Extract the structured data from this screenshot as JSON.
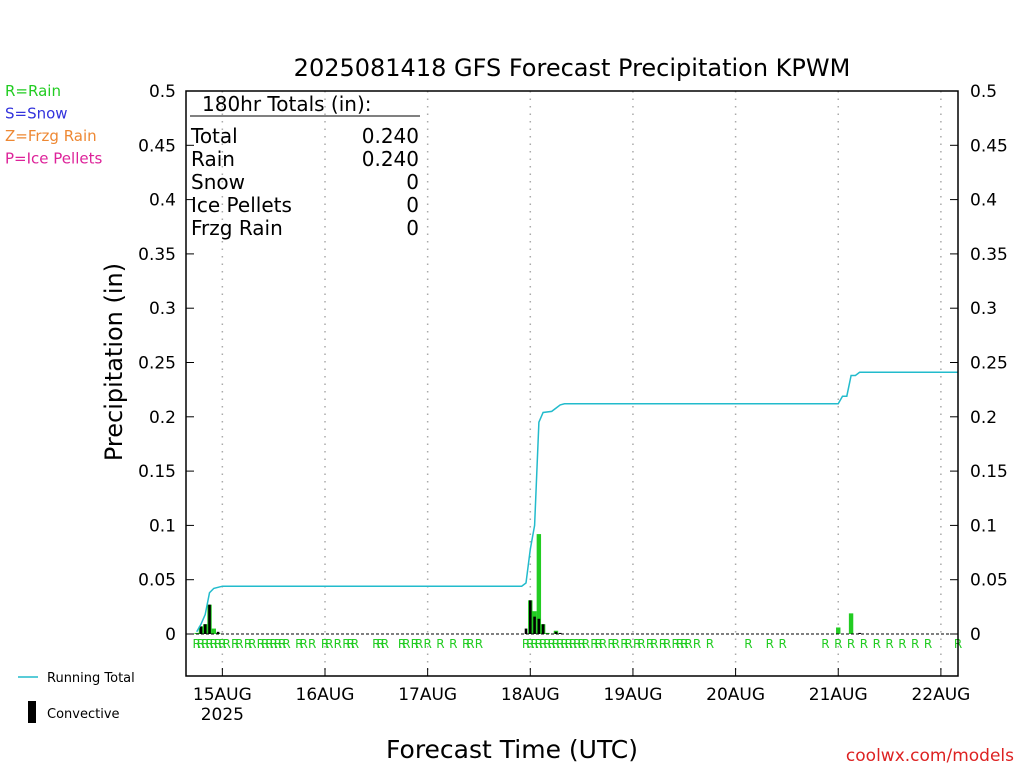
{
  "chart_data": {
    "type": "bar",
    "title": "2025081418 GFS Forecast Precipitation KPWM",
    "xlabel": "Forecast Time (UTC)",
    "ylabel": "Precipitation (in)",
    "ylim": [
      0,
      0.5
    ],
    "yticks": [
      "0",
      "0.05",
      "0.1",
      "0.15",
      "0.2",
      "0.25",
      "0.3",
      "0.35",
      "0.4",
      "0.45",
      "0.5"
    ],
    "xlim_hours": [
      -2.5,
      178
    ],
    "xticks": [
      {
        "label": "15AUG",
        "sub": "2025",
        "hour": 6
      },
      {
        "label": "16AUG",
        "sub": "",
        "hour": 30
      },
      {
        "label": "17AUG",
        "sub": "",
        "hour": 54
      },
      {
        "label": "18AUG",
        "sub": "",
        "hour": 78
      },
      {
        "label": "19AUG",
        "sub": "",
        "hour": 102
      },
      {
        "label": "20AUG",
        "sub": "",
        "hour": 126
      },
      {
        "label": "21AUG",
        "sub": "",
        "hour": 150
      },
      {
        "label": "22AUG",
        "sub": "",
        "hour": 174
      }
    ],
    "grid": "vertical-dotted",
    "legend": {
      "types": [
        {
          "text": "R=Rain",
          "color": "#22cc22"
        },
        {
          "text": "S=Snow",
          "color": "#3333dd"
        },
        {
          "text": "Z=Frzg Rain",
          "color": "#ee8833"
        },
        {
          "text": "P=Ice Pellets",
          "color": "#dd2299"
        }
      ],
      "lines": [
        {
          "text": "Running Total",
          "color": "#22bbcc"
        },
        {
          "text": "Convective",
          "color": "#000000"
        }
      ]
    },
    "totals": {
      "header": "180hr Totals (in):",
      "rows": [
        {
          "label": "Total",
          "value": "0.240"
        },
        {
          "label": "Rain",
          "value": "0.240"
        },
        {
          "label": "Snow",
          "value": "0"
        },
        {
          "label": "Ice Pellets",
          "value": "0"
        },
        {
          "label": "Frzg Rain",
          "value": "0"
        }
      ]
    },
    "series": [
      {
        "name": "Rain",
        "color": "#22cc22",
        "hours": [
          0,
          1,
          2,
          3,
          4,
          5,
          78,
          79,
          80,
          81,
          82,
          84,
          150,
          153
        ],
        "values": [
          0.001,
          0.007,
          0.009,
          0.027,
          0.005,
          0.001,
          0.031,
          0.021,
          0.092,
          0.009,
          0.001,
          0.003,
          0.006,
          0.019
        ]
      },
      {
        "name": "Convective",
        "color": "#000000",
        "hours": [
          1,
          2,
          3,
          5,
          77,
          78,
          79,
          80,
          81,
          84,
          85,
          155
        ],
        "values": [
          0.007,
          0.009,
          0.027,
          0.002,
          0.005,
          0.031,
          0.016,
          0.014,
          0.009,
          0.002,
          0.001,
          0.001
        ]
      },
      {
        "name": "Running Total",
        "color": "#22bbcc",
        "hours": [
          0,
          1,
          2,
          3,
          4,
          5,
          6,
          76,
          77,
          78,
          79,
          80,
          81,
          83,
          84,
          85,
          86,
          150,
          151,
          152,
          153,
          154,
          155,
          178
        ],
        "values": [
          0.002,
          0.009,
          0.018,
          0.038,
          0.042,
          0.043,
          0.044,
          0.044,
          0.047,
          0.078,
          0.1,
          0.195,
          0.204,
          0.205,
          0.208,
          0.211,
          0.212,
          0.212,
          0.219,
          0.219,
          0.238,
          0.238,
          0.241,
          0.241
        ]
      }
    ],
    "precip_codes": {
      "label": "R",
      "color": "#22cc22",
      "hours": [
        0,
        1,
        2,
        3,
        4,
        5,
        6,
        7,
        9,
        10,
        12,
        13,
        15,
        16,
        17,
        18,
        19,
        20,
        21,
        24,
        25,
        27,
        30,
        31,
        33,
        35,
        36,
        37,
        42,
        43,
        44,
        48,
        49,
        51,
        52,
        54,
        57,
        60,
        63,
        64,
        66,
        77,
        78,
        79,
        80,
        81,
        82,
        83,
        84,
        85,
        86,
        87,
        88,
        89,
        90,
        91,
        93,
        94,
        95,
        97,
        98,
        100,
        101,
        103,
        104,
        106,
        107,
        109,
        110,
        112,
        113,
        114,
        115,
        117,
        120,
        129,
        134,
        137,
        147,
        150,
        153,
        156,
        159,
        162,
        165,
        168,
        171,
        178
      ]
    },
    "credit": "coolwx.com/models"
  }
}
